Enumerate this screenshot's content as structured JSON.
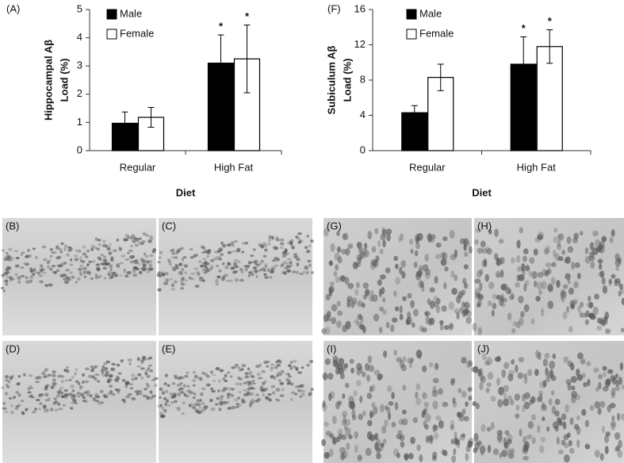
{
  "chart_data": [
    {
      "type": "bar",
      "panel": "(A)",
      "ylabel": [
        "Hippocampal Aβ",
        "Load (%)"
      ],
      "xlabel": "Diet",
      "categories": [
        "Regular",
        "High Fat"
      ],
      "series": [
        {
          "name": "Male",
          "color": "#000000",
          "values": [
            0.97,
            3.1
          ],
          "errors": [
            0.4,
            1.0
          ],
          "annotations": [
            null,
            "*"
          ]
        },
        {
          "name": "Female",
          "color": "#ffffff",
          "values": [
            1.18,
            3.25
          ],
          "errors": [
            0.35,
            1.2
          ],
          "annotations": [
            null,
            "*"
          ]
        }
      ],
      "ylim": [
        0,
        5
      ],
      "yticks": [
        0,
        1,
        2,
        3,
        4,
        5
      ]
    },
    {
      "type": "bar",
      "panel": "(F)",
      "ylabel": [
        "Subiculum Aβ",
        "Load (%)"
      ],
      "xlabel": "Diet",
      "categories": [
        "Regular",
        "High Fat"
      ],
      "series": [
        {
          "name": "Male",
          "color": "#000000",
          "values": [
            4.3,
            9.8
          ],
          "errors": [
            0.8,
            3.1
          ],
          "annotations": [
            null,
            "*"
          ]
        },
        {
          "name": "Female",
          "color": "#ffffff",
          "values": [
            8.3,
            11.8
          ],
          "errors": [
            1.5,
            1.9
          ],
          "annotations": [
            null,
            "*"
          ]
        }
      ],
      "ylim": [
        0,
        16
      ],
      "yticks": [
        0,
        4,
        8,
        12,
        16
      ]
    }
  ],
  "micrographs": [
    "(B)",
    "(C)",
    "(D)",
    "(E)",
    "(G)",
    "(H)",
    "(I)",
    "(J)"
  ]
}
